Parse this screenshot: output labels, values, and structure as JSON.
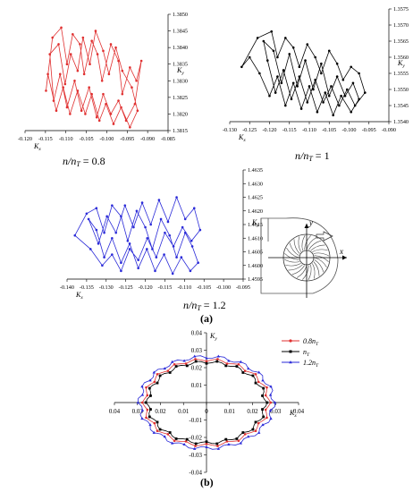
{
  "panels": [
    {
      "id": "p08",
      "color": "#e03030",
      "caption_main": "n/n",
      "caption_sub": "T",
      "caption_val": " = 0.8",
      "xticks": [
        "-0.120",
        "-0.115",
        "-0.110",
        "-0.105",
        "-0.100",
        "-0.095",
        "-0.090",
        "-0.085"
      ],
      "yticks": [
        "1.3815",
        "1.3820",
        "1.3825",
        "1.3830",
        "1.3835",
        "1.3840",
        "1.3845",
        "1.3850"
      ],
      "xlabel": "K",
      "xlabel_sub": "x",
      "ylabel": "K",
      "ylabel_sub": "y",
      "points": [
        [
          -0.1145,
          1.3827
        ],
        [
          -0.1128,
          1.3843
        ],
        [
          -0.1105,
          1.3846
        ],
        [
          -0.109,
          1.3835
        ],
        [
          -0.1075,
          1.3844
        ],
        [
          -0.1056,
          1.3841
        ],
        [
          -0.1045,
          1.3832
        ],
        [
          -0.1025,
          1.3842
        ],
        [
          -0.101,
          1.3838
        ],
        [
          -0.0998,
          1.383
        ],
        [
          -0.0975,
          1.3841
        ],
        [
          -0.0955,
          1.3836
        ],
        [
          -0.0945,
          1.3826
        ],
        [
          -0.0925,
          1.3834
        ],
        [
          -0.0908,
          1.383
        ],
        [
          -0.0895,
          1.3836
        ],
        [
          -0.0912,
          1.3823
        ],
        [
          -0.0935,
          1.3818
        ],
        [
          -0.0955,
          1.3824
        ],
        [
          -0.0975,
          1.382
        ],
        [
          -0.0995,
          1.3826
        ],
        [
          -0.1012,
          1.3819
        ],
        [
          -0.1032,
          1.3828
        ],
        [
          -0.1052,
          1.3821
        ],
        [
          -0.107,
          1.383
        ],
        [
          -0.109,
          1.3822
        ],
        [
          -0.1108,
          1.3832
        ],
        [
          -0.1125,
          1.3824
        ],
        [
          -0.1135,
          1.3838
        ],
        [
          -0.1112,
          1.3841
        ],
        [
          -0.1095,
          1.3829
        ],
        [
          -0.108,
          1.3838
        ],
        [
          -0.1062,
          1.3833
        ],
        [
          -0.1048,
          1.3843
        ],
        [
          -0.103,
          1.3835
        ],
        [
          -0.1015,
          1.3845
        ],
        [
          -0.0995,
          1.3839
        ],
        [
          -0.098,
          1.3832
        ],
        [
          -0.0962,
          1.384
        ],
        [
          -0.0945,
          1.3833
        ],
        [
          -0.092,
          1.3828
        ],
        [
          -0.0905,
          1.3821
        ],
        [
          -0.0925,
          1.3816
        ],
        [
          -0.0948,
          1.3822
        ],
        [
          -0.0968,
          1.3817
        ],
        [
          -0.0988,
          1.3823
        ],
        [
          -0.1005,
          1.3818
        ],
        [
          -0.1025,
          1.3826
        ],
        [
          -0.1042,
          1.382
        ],
        [
          -0.1062,
          1.3827
        ],
        [
          -0.1082,
          1.382
        ],
        [
          -0.11,
          1.3828
        ],
        [
          -0.1118,
          1.3821
        ],
        [
          -0.114,
          1.3832
        ]
      ]
    },
    {
      "id": "p1",
      "color": "#000000",
      "caption_main": "n/n",
      "caption_sub": "T",
      "caption_val": " = 1",
      "xticks": [
        "-0.130",
        "-0.125",
        "-0.120",
        "-0.115",
        "-0.110",
        "-0.105",
        "-0.100",
        "-0.095",
        "-0.090"
      ],
      "yticks": [
        "1.3540",
        "1.3545",
        "1.3550",
        "1.3555",
        "1.3560",
        "1.3565",
        "1.3570",
        "1.3575"
      ],
      "xlabel": "K",
      "xlabel_sub": "x",
      "ylabel": "K",
      "ylabel_sub": "y",
      "points": [
        [
          -0.127,
          1.3557
        ],
        [
          -0.123,
          1.3566
        ],
        [
          -0.1195,
          1.3568
        ],
        [
          -0.118,
          1.356
        ],
        [
          -0.116,
          1.3566
        ],
        [
          -0.114,
          1.3563
        ],
        [
          -0.1125,
          1.3557
        ],
        [
          -0.1105,
          1.3564
        ],
        [
          -0.1085,
          1.356
        ],
        [
          -0.107,
          1.3555
        ],
        [
          -0.105,
          1.3562
        ],
        [
          -0.103,
          1.3558
        ],
        [
          -0.1015,
          1.3553
        ],
        [
          -0.0995,
          1.3557
        ],
        [
          -0.0975,
          1.3555
        ],
        [
          -0.096,
          1.3549
        ],
        [
          -0.0985,
          1.3545
        ],
        [
          -0.1005,
          1.355
        ],
        [
          -0.1025,
          1.3545
        ],
        [
          -0.1045,
          1.3551
        ],
        [
          -0.1065,
          1.3546
        ],
        [
          -0.1085,
          1.3553
        ],
        [
          -0.1105,
          1.3546
        ],
        [
          -0.1125,
          1.3554
        ],
        [
          -0.1145,
          1.3547
        ],
        [
          -0.1165,
          1.3556
        ],
        [
          -0.1185,
          1.3549
        ],
        [
          -0.1205,
          1.3559
        ],
        [
          -0.1215,
          1.3565
        ],
        [
          -0.119,
          1.3562
        ],
        [
          -0.117,
          1.3552
        ],
        [
          -0.115,
          1.3561
        ],
        [
          -0.113,
          1.3551
        ],
        [
          -0.111,
          1.3559
        ],
        [
          -0.109,
          1.355
        ],
        [
          -0.107,
          1.3558
        ],
        [
          -0.105,
          1.3548
        ],
        [
          -0.103,
          1.3554
        ],
        [
          -0.101,
          1.3548
        ],
        [
          -0.099,
          1.3552
        ],
        [
          -0.0975,
          1.3547
        ],
        [
          -0.0995,
          1.3543
        ],
        [
          -0.102,
          1.3548
        ],
        [
          -0.104,
          1.3542
        ],
        [
          -0.106,
          1.3549
        ],
        [
          -0.108,
          1.3543
        ],
        [
          -0.11,
          1.3551
        ],
        [
          -0.112,
          1.3544
        ],
        [
          -0.114,
          1.3552
        ],
        [
          -0.116,
          1.3545
        ],
        [
          -0.118,
          1.3554
        ],
        [
          -0.12,
          1.3548
        ],
        [
          -0.1225,
          1.3555
        ],
        [
          -0.125,
          1.356
        ]
      ]
    },
    {
      "id": "p12",
      "color": "#2a2ad8",
      "caption_main": "n/n",
      "caption_sub": "T",
      "caption_val": " = 1.2",
      "xticks": [
        "-0.140",
        "-0.135",
        "-0.130",
        "-0.125",
        "-0.120",
        "-0.115",
        "-0.110",
        "-0.105",
        "-0.100",
        "-0.095"
      ],
      "yticks": [
        "1.4595",
        "1.4600",
        "1.4605",
        "1.4610",
        "1.4615",
        "1.4620",
        "1.4625",
        "1.4630",
        "1.4635"
      ],
      "xlabel": "K",
      "xlabel_sub": "x",
      "ylabel": "K",
      "ylabel_sub": "y",
      "points": [
        [
          -0.138,
          1.4611
        ],
        [
          -0.135,
          1.4619
        ],
        [
          -0.1325,
          1.4621
        ],
        [
          -0.1305,
          1.4612
        ],
        [
          -0.1285,
          1.4622
        ],
        [
          -0.1262,
          1.4618
        ],
        [
          -0.1245,
          1.4609
        ],
        [
          -0.1222,
          1.462
        ],
        [
          -0.12,
          1.4614
        ],
        [
          -0.1182,
          1.4606
        ],
        [
          -0.116,
          1.4617
        ],
        [
          -0.1138,
          1.4611
        ],
        [
          -0.112,
          1.4603
        ],
        [
          -0.1098,
          1.4612
        ],
        [
          -0.108,
          1.4607
        ],
        [
          -0.1065,
          1.4601
        ],
        [
          -0.1085,
          1.4598
        ],
        [
          -0.1108,
          1.4603
        ],
        [
          -0.113,
          1.4597
        ],
        [
          -0.1152,
          1.4604
        ],
        [
          -0.1175,
          1.4598
        ],
        [
          -0.1196,
          1.4606
        ],
        [
          -0.1218,
          1.4599
        ],
        [
          -0.124,
          1.4608
        ],
        [
          -0.1262,
          1.4601
        ],
        [
          -0.1285,
          1.461
        ],
        [
          -0.1305,
          1.4603
        ],
        [
          -0.1325,
          1.4613
        ],
        [
          -0.1345,
          1.4617
        ],
        [
          -0.132,
          1.4608
        ],
        [
          -0.1298,
          1.4618
        ],
        [
          -0.1275,
          1.4612
        ],
        [
          -0.1252,
          1.4622
        ],
        [
          -0.123,
          1.4614
        ],
        [
          -0.1208,
          1.4623
        ],
        [
          -0.1186,
          1.4615
        ],
        [
          -0.1165,
          1.4624
        ],
        [
          -0.1142,
          1.4616
        ],
        [
          -0.112,
          1.4625
        ],
        [
          -0.1098,
          1.4617
        ],
        [
          -0.1075,
          1.4621
        ],
        [
          -0.106,
          1.4613
        ],
        [
          -0.1082,
          1.4609
        ],
        [
          -0.1105,
          1.4614
        ],
        [
          -0.1128,
          1.4607
        ],
        [
          -0.115,
          1.4612
        ],
        [
          -0.1172,
          1.4603
        ],
        [
          -0.1195,
          1.461
        ],
        [
          -0.1218,
          1.4602
        ],
        [
          -0.124,
          1.4606
        ],
        [
          -0.1262,
          1.4598
        ],
        [
          -0.1285,
          1.4604
        ],
        [
          -0.131,
          1.46
        ],
        [
          -0.134,
          1.4606
        ]
      ]
    }
  ],
  "label_a": "(a)",
  "label_b": "(b)",
  "schematic": {
    "x_label": "x",
    "y_label": "y"
  },
  "chart_data": {
    "type": "scatter",
    "title": "",
    "xlabel": "K",
    "xlabel_sub": "x",
    "ylabel": "K",
    "ylabel_sub": "y",
    "xlim": [
      -0.04,
      0.04
    ],
    "ylim": [
      -0.04,
      0.04
    ],
    "xticks": [
      "0.04",
      "0.03",
      "0.02",
      "0.01",
      "0",
      "0.01",
      "0.02",
      "0.03",
      "0.04"
    ],
    "yticks": [
      "0.04",
      "0.03",
      "0.02",
      "0.01",
      "-0.01",
      "-0.02",
      "-0.03",
      "-0.04"
    ],
    "legend_position": "top-right",
    "series": [
      {
        "name": "0.8n",
        "name_sub": "T",
        "color": "#e03030",
        "marker": "circle",
        "radius": [
          0.027,
          0.0245
        ],
        "ripple": 0.0009,
        "lobes": 18
      },
      {
        "name": "n",
        "name_sub": "T",
        "color": "#000000",
        "marker": "square",
        "radius": [
          0.0255,
          0.0232
        ],
        "ripple": 0.0009,
        "lobes": 18
      },
      {
        "name": "1.2n",
        "name_sub": "T",
        "color": "#2a2ad8",
        "marker": "triangle",
        "radius": [
          0.029,
          0.0262
        ],
        "ripple": 0.0011,
        "lobes": 18
      }
    ]
  }
}
